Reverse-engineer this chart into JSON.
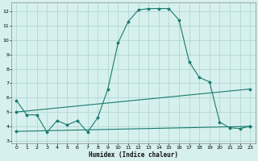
{
  "title": "",
  "xlabel": "Humidex (Indice chaleur)",
  "bg_color": "#d6f0ee",
  "grid_color": "#b0d8d4",
  "line_color": "#1a7a6e",
  "xlim": [
    -0.5,
    23.5
  ],
  "ylim": [
    2.8,
    12.6
  ],
  "yticks": [
    3,
    4,
    5,
    6,
    7,
    8,
    9,
    10,
    11,
    12
  ],
  "xticks": [
    0,
    1,
    2,
    3,
    4,
    5,
    6,
    7,
    8,
    9,
    10,
    11,
    12,
    13,
    14,
    15,
    16,
    17,
    18,
    19,
    20,
    21,
    22,
    23
  ],
  "curve1_x": [
    0,
    1,
    2,
    3,
    4,
    5,
    6,
    7,
    8,
    9,
    10,
    11,
    12,
    13,
    14,
    15,
    16,
    17,
    18,
    19,
    20,
    21,
    22,
    23
  ],
  "curve1_y": [
    5.8,
    4.8,
    4.8,
    3.6,
    4.4,
    4.1,
    4.4,
    3.6,
    4.6,
    6.6,
    9.8,
    11.3,
    12.1,
    12.2,
    12.2,
    12.2,
    11.4,
    8.5,
    7.4,
    7.1,
    4.3,
    3.9,
    3.85,
    4.0
  ],
  "curve2_x": [
    0,
    23
  ],
  "curve2_y": [
    5.0,
    6.6
  ],
  "curve3_x": [
    0,
    23
  ],
  "curve3_y": [
    3.65,
    4.0
  ]
}
